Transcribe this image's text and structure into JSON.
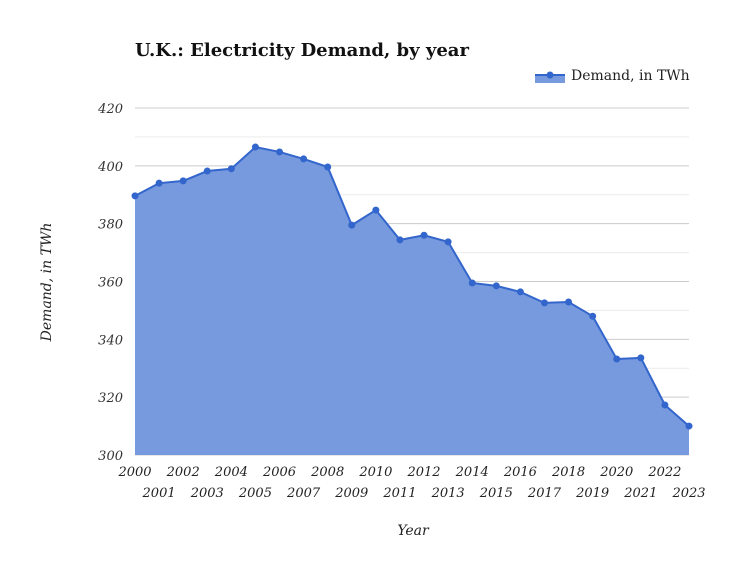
{
  "chart_data": {
    "type": "area",
    "title": "U.K.: Electricity Demand, by year",
    "xlabel": "Year",
    "ylabel": "Demand, in TWh",
    "legend": {
      "position": "top-right",
      "entries": [
        "Demand, in TWh"
      ]
    },
    "ylim": [
      300,
      420
    ],
    "yticks": [
      300,
      320,
      340,
      360,
      380,
      400,
      420
    ],
    "grid": true,
    "colors": {
      "line": "#3366cc",
      "fill": "#7799dd"
    },
    "series": [
      {
        "name": "Demand, in TWh",
        "x": [
          "2000",
          "2001",
          "2002",
          "2003",
          "2004",
          "2005",
          "2006",
          "2007",
          "2008",
          "2009",
          "2010",
          "2011",
          "2012",
          "2013",
          "2014",
          "2015",
          "2016",
          "2017",
          "2018",
          "2019",
          "2020",
          "2021",
          "2022",
          "2023"
        ],
        "values": [
          389.6,
          394.0,
          394.8,
          398.2,
          399.0,
          406.5,
          404.8,
          402.4,
          399.6,
          379.5,
          384.7,
          374.4,
          376.0,
          373.7,
          359.5,
          358.5,
          356.4,
          352.6,
          352.9,
          348.0,
          333.2,
          333.6,
          317.3,
          310.0
        ]
      }
    ]
  }
}
